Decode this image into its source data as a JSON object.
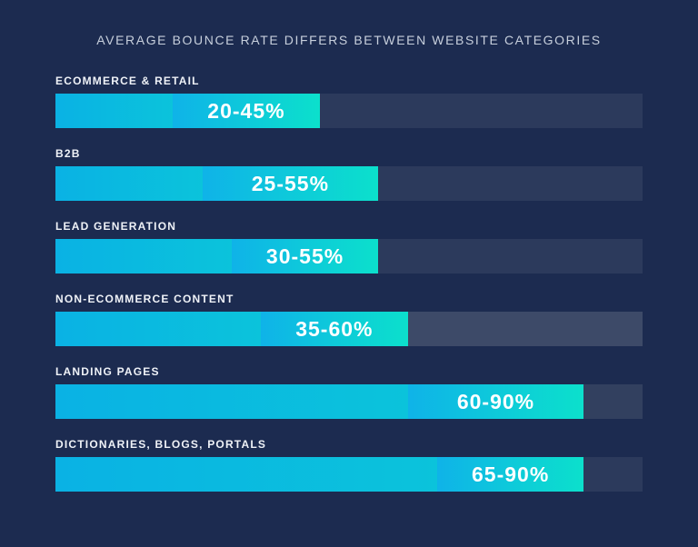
{
  "colors": {
    "background": "#1C2B50",
    "title_color": "#C7CFDC",
    "category_label_color": "#EFF2F7",
    "value_text_color": "#FFFFFF",
    "bar_base_gradient_start": "#0AB2E4",
    "bar_base_gradient_end": "#0BC3DB",
    "bar_range_gradient_start": "#0FB3E8",
    "bar_range_gradient_end": "#0CE0CC"
  },
  "chart_data": {
    "type": "bar",
    "orientation": "horizontal",
    "title": "AVERAGE BOUNCE RATE DIFFERS BETWEEN WEBSITE CATEGORIES",
    "xlim": [
      0,
      100
    ],
    "unit": "%",
    "grid": false,
    "legend": false,
    "rows": [
      {
        "category": "ECOMMERCE & RETAIL",
        "min": 20,
        "max": 45,
        "value_label": "20-45%",
        "track_color": "#2C3A5C"
      },
      {
        "category": "B2B",
        "min": 25,
        "max": 55,
        "value_label": "25-55%",
        "track_color": "#2C3A5C"
      },
      {
        "category": "LEAD GENERATION",
        "min": 30,
        "max": 55,
        "value_label": "30-55%",
        "track_color": "#2C3A5C"
      },
      {
        "category": "NON-ECOMMERCE CONTENT",
        "min": 35,
        "max": 60,
        "value_label": "35-60%",
        "track_color": "#3D4A68"
      },
      {
        "category": "LANDING PAGES",
        "min": 60,
        "max": 90,
        "value_label": "60-90%",
        "track_color": "#32405F"
      },
      {
        "category": "DICTIONARIES, BLOGS, PORTALS",
        "min": 65,
        "max": 90,
        "value_label": "65-90%",
        "track_color": "#2C3A5C"
      }
    ]
  }
}
